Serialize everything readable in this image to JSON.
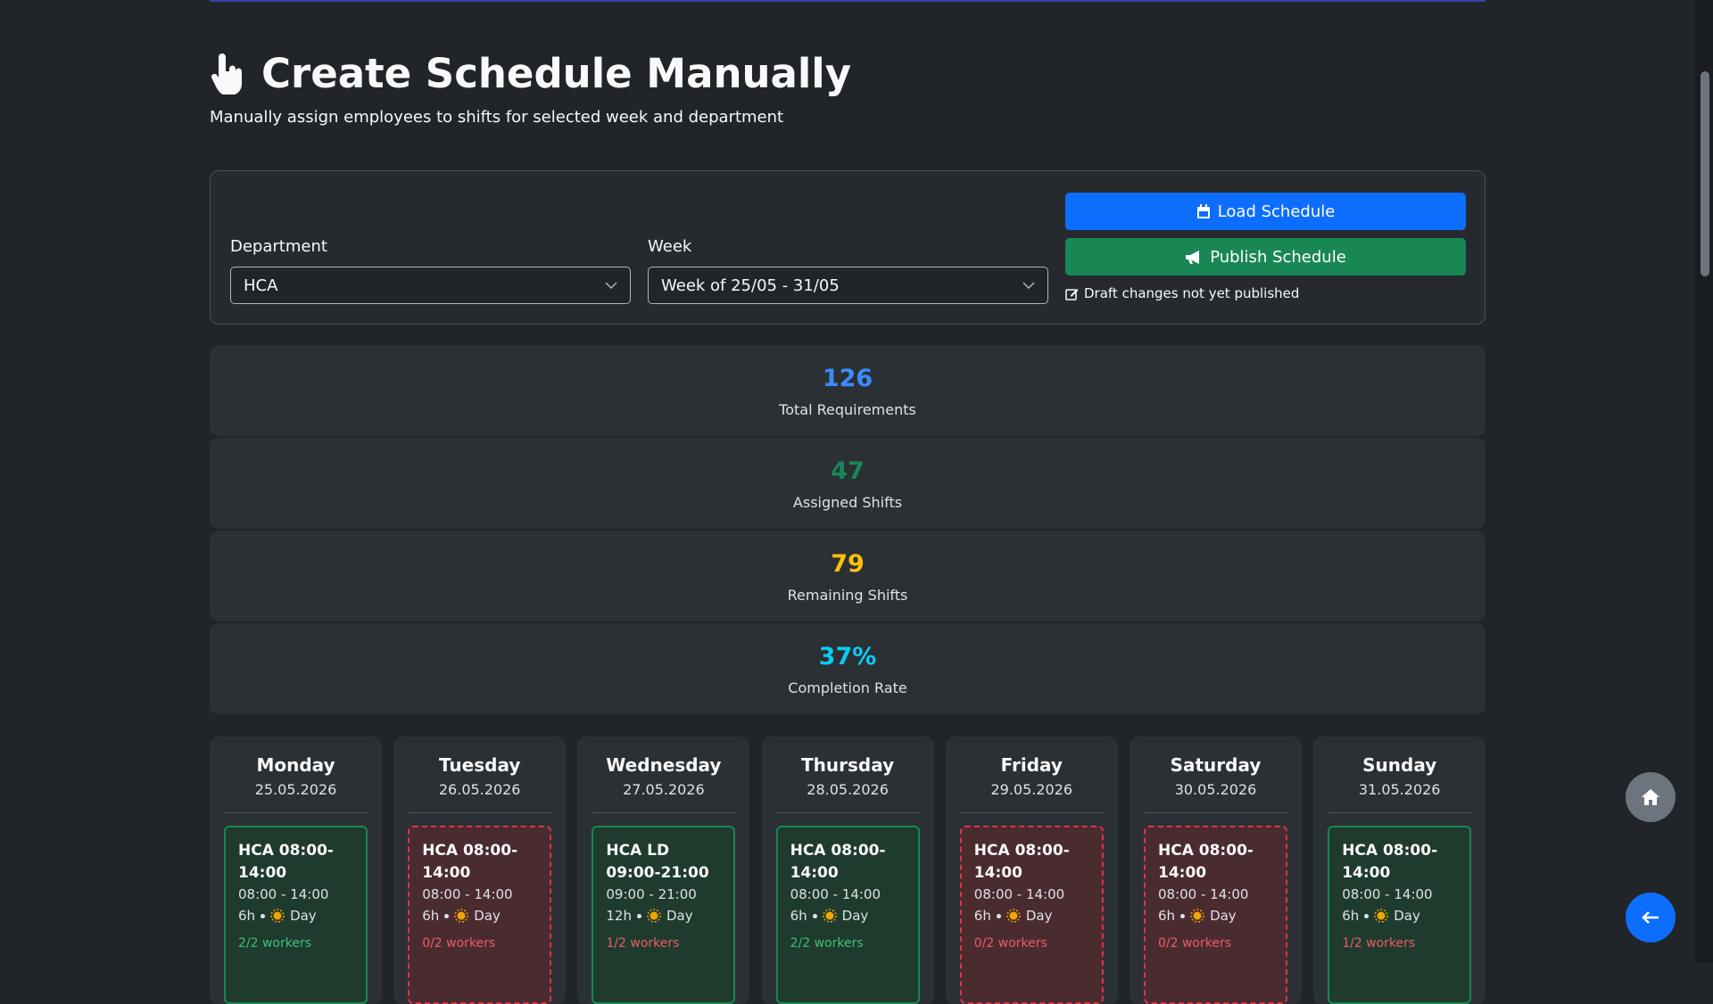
{
  "header": {
    "title": "Create Schedule Manually",
    "subtitle": "Manually assign employees to shifts for selected week and department"
  },
  "filters": {
    "department_label": "Department",
    "department_value": "HCA",
    "week_label": "Week",
    "week_value": "Week of 25/05 - 31/05",
    "load_button": "Load Schedule",
    "publish_button": "Publish Schedule",
    "draft_note": "Draft changes not yet published"
  },
  "stats": [
    {
      "value": "126",
      "label": "Total Requirements",
      "color": "#3d8bfd"
    },
    {
      "value": "47",
      "label": "Assigned Shifts",
      "color": "#198754"
    },
    {
      "value": "79",
      "label": "Remaining Shifts",
      "color": "#ffc107"
    },
    {
      "value": "37%",
      "label": "Completion Rate",
      "color": "#0dcaf0"
    }
  ],
  "days": [
    {
      "name": "Monday",
      "date": "25.05.2026",
      "shifts": [
        {
          "title": "HCA 08:00-14:00",
          "time": "08:00 - 14:00",
          "duration": "6h",
          "period": "Day",
          "workers": "2/2 workers",
          "status": "full"
        }
      ]
    },
    {
      "name": "Tuesday",
      "date": "26.05.2026",
      "shifts": [
        {
          "title": "HCA 08:00-14:00",
          "time": "08:00 - 14:00",
          "duration": "6h",
          "period": "Day",
          "workers": "0/2 workers",
          "status": "empty"
        }
      ]
    },
    {
      "name": "Wednesday",
      "date": "27.05.2026",
      "shifts": [
        {
          "title": "HCA LD 09:00-21:00",
          "time": "09:00 - 21:00",
          "duration": "12h",
          "period": "Day",
          "workers": "1/2 workers",
          "status": "partial"
        }
      ]
    },
    {
      "name": "Thursday",
      "date": "28.05.2026",
      "shifts": [
        {
          "title": "HCA 08:00-14:00",
          "time": "08:00 - 14:00",
          "duration": "6h",
          "period": "Day",
          "workers": "2/2 workers",
          "status": "full"
        }
      ]
    },
    {
      "name": "Friday",
      "date": "29.05.2026",
      "shifts": [
        {
          "title": "HCA 08:00-14:00",
          "time": "08:00 - 14:00",
          "duration": "6h",
          "period": "Day",
          "workers": "0/2 workers",
          "status": "empty"
        }
      ]
    },
    {
      "name": "Saturday",
      "date": "30.05.2026",
      "shifts": [
        {
          "title": "HCA 08:00-14:00",
          "time": "08:00 - 14:00",
          "duration": "6h",
          "period": "Day",
          "workers": "0/2 workers",
          "status": "empty"
        }
      ]
    },
    {
      "name": "Sunday",
      "date": "31.05.2026",
      "shifts": [
        {
          "title": "HCA 08:00-14:00",
          "time": "08:00 - 14:00",
          "duration": "6h",
          "period": "Day",
          "workers": "1/2 workers",
          "status": "partial"
        }
      ]
    }
  ]
}
